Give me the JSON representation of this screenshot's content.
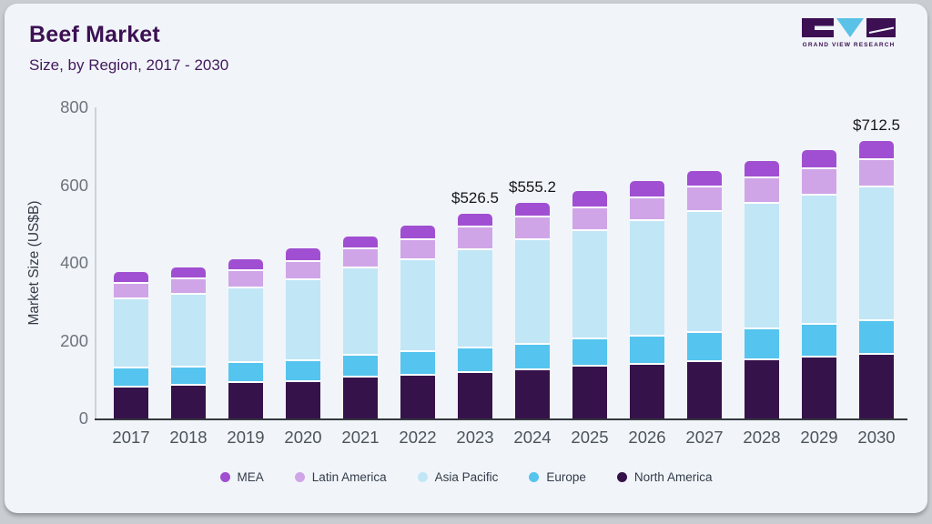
{
  "header": {
    "title": "Beef Market",
    "subtitle": "Size, by Region, 2017 - 2030",
    "logo_text": "GRAND VIEW RESEARCH"
  },
  "colors": {
    "card_background": "#f1f5f9",
    "outer_background": "#c9cdd1",
    "title": "#3c1053",
    "axis_line": "#34383f",
    "logo_dark": "#3c1053",
    "logo_blue": "#5bc2e7"
  },
  "chart_data": {
    "type": "bar",
    "stacked": true,
    "title": "Beef Market Size, by Region, 2017 - 2030",
    "xlabel": "",
    "ylabel": "Market Size (US$B)",
    "ylim": [
      0,
      800
    ],
    "yticks": [
      0,
      200,
      400,
      600,
      800
    ],
    "grid": false,
    "legend_position": "bottom",
    "categories": [
      "2017",
      "2018",
      "2019",
      "2020",
      "2021",
      "2022",
      "2023",
      "2024",
      "2025",
      "2026",
      "2027",
      "2028",
      "2029",
      "2030"
    ],
    "series": [
      {
        "name": "North America",
        "color": "#35124a",
        "values": [
          79,
          84,
          90,
          95,
          104,
          109,
          117,
          123.3,
          133,
          139,
          144,
          150,
          156,
          164
        ]
      },
      {
        "name": "Europe",
        "color": "#55c4ee",
        "values": [
          49,
          48,
          52,
          53,
          57,
          62,
          64,
          65.5,
          70,
          72,
          76,
          79,
          84,
          86
        ]
      },
      {
        "name": "Asia Pacific",
        "color": "#c1e6f6",
        "values": [
          178,
          186,
          193,
          207,
          224,
          235,
          252,
          269.6,
          279,
          296,
          310,
          323,
          333,
          344.5
        ]
      },
      {
        "name": "Latin America",
        "color": "#cfa5e8",
        "values": [
          41,
          40,
          43,
          48,
          49,
          52,
          58.5,
          58.1,
          58,
          58.5,
          64,
          66,
          68,
          70
        ]
      },
      {
        "name": "MEA",
        "color": "#a14fd2",
        "values": [
          29,
          30,
          32,
          35,
          34,
          39,
          35,
          38.7,
          45,
          44.5,
          43,
          45,
          49,
          48
        ]
      }
    ],
    "totals": [
      376,
      388,
      410,
      438,
      468,
      497,
      526.5,
      555.2,
      585,
      610,
      637,
      663,
      690,
      712.5
    ],
    "total_labels": [
      "",
      "",
      "",
      "",
      "",
      "",
      "$526.5",
      "$555.2",
      "",
      "",
      "",
      "",
      "",
      "$712.5"
    ],
    "legend": [
      "MEA",
      "Latin America",
      "Asia Pacific",
      "Europe",
      "North America"
    ]
  }
}
